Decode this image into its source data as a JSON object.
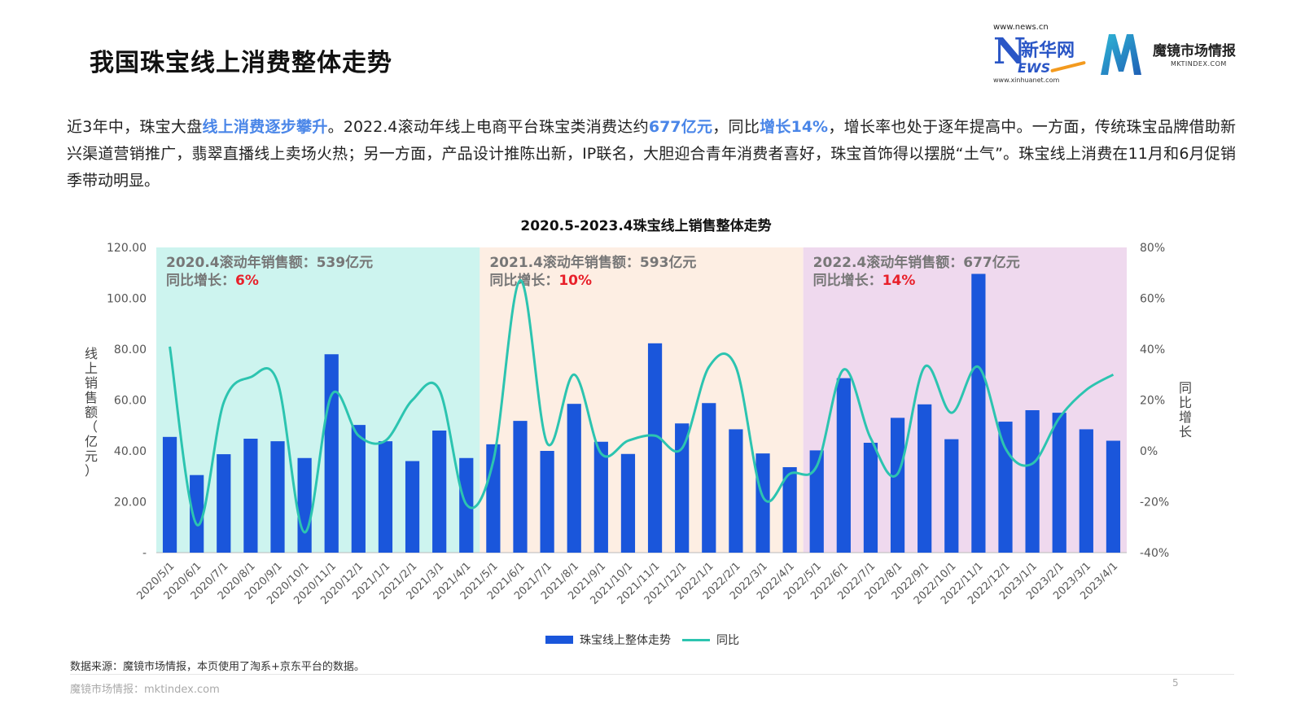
{
  "page": {
    "title": "我国珠宝线上消费整体走势",
    "source": "数据来源：魔镜市场情报，本页使用了淘系+京东平台的数据。",
    "footer": "魔镜市场情报：mktindex.com",
    "page_number": "5"
  },
  "logos": {
    "xinhua_url": "www.news.cn",
    "xinhua_n": "N",
    "xinhua_name": "新华网",
    "xinhua_ews": "EWS",
    "xinhua_sub": "www.xinhuanet.com",
    "mj_name": "魔镜市场情报",
    "mj_domain": "MKTINDEX.COM"
  },
  "paragraph": {
    "p1": "近3年中，珠宝大盘",
    "h1": "线上消费逐步攀升",
    "p2": "。2022.4滚动年线上电商平台珠宝类消费达约",
    "h2": "677亿元",
    "p3": "，同比",
    "h3": "增长14%",
    "p4": "，增长率也处于逐年提高中。一方面，传统珠宝品牌借助新兴渠道营销推广，翡翠直播线上卖场火热；另一方面，产品设计推陈出新，IP联名，大胆迎合青年消费者喜好，珠宝首饰得以摆脱“土气”。珠宝线上消费在11月和6月促销季带动明显。"
  },
  "colors": {
    "bar": "#1a56db",
    "line": "#2cc4b0",
    "band1": "#cdf4ef",
    "band2": "#fdeee3",
    "band3": "#efd9ee",
    "highlight_text": "#4a86e8",
    "annotation_red": "#e8202a"
  },
  "chart_data": {
    "type": "bar",
    "title": "2020.5-2023.4珠宝线上销售整体走势",
    "ylabel": "线上销售额（亿元）",
    "y2label": "同比增长",
    "ylim": [
      0,
      120
    ],
    "y2lim": [
      -40,
      80
    ],
    "y_ticks": [
      "-",
      "20.00",
      "40.00",
      "60.00",
      "80.00",
      "100.00",
      "120.00"
    ],
    "y2_ticks": [
      "-40%",
      "-20%",
      "0%",
      "20%",
      "40%",
      "60%",
      "80%"
    ],
    "categories": [
      "2020/5/1",
      "2020/6/1",
      "2020/7/1",
      "2020/8/1",
      "2020/9/1",
      "2020/10/1",
      "2020/11/1",
      "2020/12/1",
      "2021/1/1",
      "2021/2/1",
      "2021/3/1",
      "2021/4/1",
      "2021/5/1",
      "2021/6/1",
      "2021/7/1",
      "2021/8/1",
      "2021/9/1",
      "2021/10/1",
      "2021/11/1",
      "2021/12/1",
      "2022/1/1",
      "2022/2/1",
      "2022/3/1",
      "2022/4/1",
      "2022/5/1",
      "2022/6/1",
      "2022/7/1",
      "2022/8/1",
      "2022/9/1",
      "2022/10/1",
      "2022/11/1",
      "2022/12/1",
      "2023/1/1",
      "2023/2/1",
      "2023/3/1",
      "2023/4/1"
    ],
    "series": [
      {
        "name": "珠宝线上整体走势",
        "kind": "bar",
        "axis": "left",
        "values": [
          45.5,
          30.5,
          38.7,
          44.8,
          43.8,
          37.2,
          78.0,
          50.2,
          43.8,
          36.0,
          48.0,
          37.2,
          42.6,
          51.8,
          40.0,
          58.5,
          43.6,
          38.8,
          82.3,
          50.8,
          58.8,
          48.5,
          39.0,
          33.6,
          40.2,
          68.6,
          43.2,
          53.0,
          58.3,
          44.6,
          109.6,
          51.5,
          56.0,
          55.0,
          48.5,
          44.0
        ]
      },
      {
        "name": "同比",
        "kind": "line",
        "axis": "right",
        "values": [
          41,
          -29,
          19,
          29,
          27,
          -32,
          22,
          6,
          4,
          20,
          24,
          -21,
          -4,
          67,
          3,
          30,
          -1,
          4,
          6,
          1,
          33,
          33,
          -18,
          -9,
          -6,
          32,
          5,
          -9,
          33,
          15,
          33,
          1,
          -5,
          13,
          24,
          30
        ]
      }
    ],
    "annotations": [
      {
        "label": "2020.4滚动年销售额：539亿元",
        "growth_label": "同比增长：",
        "growth_value": "6%"
      },
      {
        "label": "2021.4滚动年销售额：593亿元",
        "growth_label": "同比增长：",
        "growth_value": "10%"
      },
      {
        "label": "2022.4滚动年销售额：677亿元",
        "growth_label": "同比增长：",
        "growth_value": "14%"
      }
    ],
    "legend": [
      {
        "name": "珠宝线上整体走势",
        "kind": "bar"
      },
      {
        "name": "同比",
        "kind": "line"
      }
    ],
    "legend_position": "bottom",
    "grid": false
  }
}
